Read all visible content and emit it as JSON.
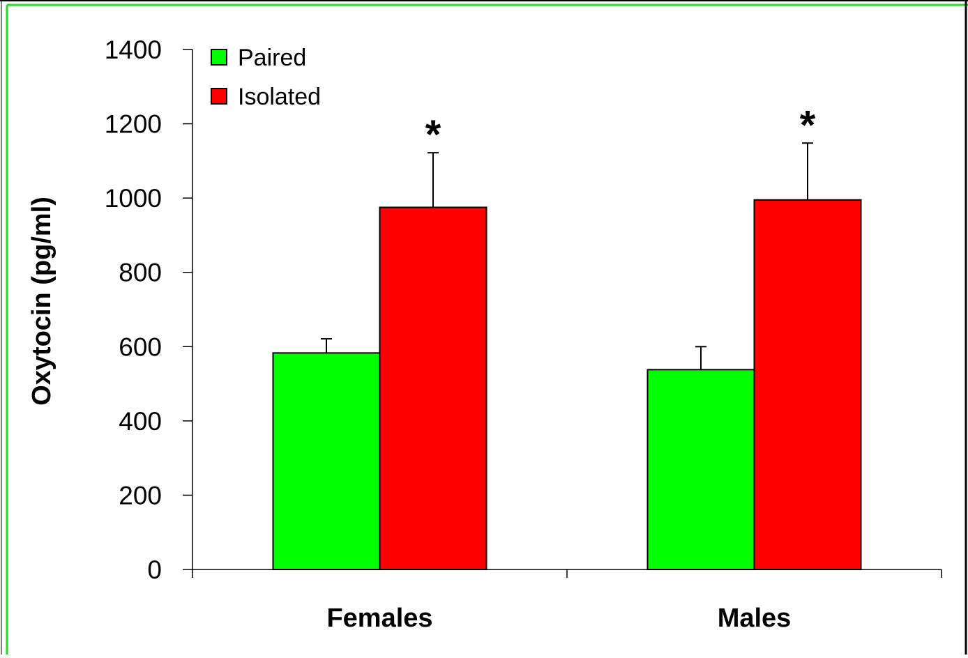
{
  "chart_data": {
    "type": "bar",
    "title": "",
    "xlabel": "",
    "ylabel": "Oxytocin (pg/ml)",
    "ylim": [
      0,
      1400
    ],
    "yticks": [
      "0",
      "200",
      "400",
      "600",
      "800",
      "1000",
      "1200",
      "1400"
    ],
    "categories": [
      "Females",
      "Males"
    ],
    "series": [
      {
        "name": "Paired",
        "color": "#00ff00",
        "values": [
          583,
          538
        ],
        "errors": [
          38,
          62
        ]
      },
      {
        "name": "Isolated",
        "color": "#ff0000",
        "values": [
          975,
          995
        ],
        "errors": [
          147,
          153
        ]
      }
    ],
    "annotations": [
      {
        "text": "*",
        "category": "Females",
        "series": "Isolated"
      },
      {
        "text": "*",
        "category": "Males",
        "series": "Isolated"
      }
    ],
    "legend": {
      "position": "top-left"
    },
    "grid": false
  },
  "colors": {
    "frame_green": "#22dd22",
    "frame_dark": "#000000"
  }
}
